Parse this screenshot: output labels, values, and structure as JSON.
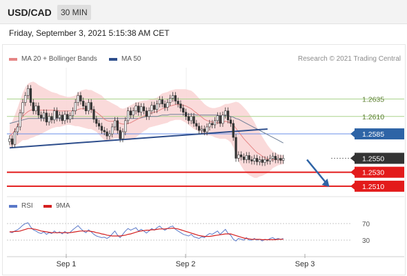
{
  "header": {
    "symbol": "USD/CAD",
    "timeframe": "30 MIN"
  },
  "date_text": "Friday, September 3, 2021 5:15:38 AM CET",
  "legend": {
    "bb_label": "MA 20 + Bollinger Bands",
    "ma50_label": "MA 50",
    "copyright": "Research © 2021 Trading Central"
  },
  "rsi_legend": {
    "rsi_label": "RSI",
    "ma_label": "9MA"
  },
  "colors": {
    "bb_band": "#f9d3d3",
    "ma20": "#e58585",
    "ma50": "#2e4e8c",
    "green_level": "#a9d38b",
    "blue_level": "#6a8fe8",
    "red_level": "#e31b1b",
    "arrow": "#2e64a6",
    "rsi_line": "#5a78c8",
    "rsi_ma": "#d41f1f"
  },
  "chart_data": {
    "type": "line",
    "title": "USD/CAD",
    "x_labels": [
      "Sep 1",
      "Sep 2",
      "Sep 3"
    ],
    "ylim": [
      1.2498,
      1.268
    ],
    "levels": [
      {
        "value": 1.2635,
        "label": "1.2635",
        "kind": "resistance",
        "color": "#a9d38b"
      },
      {
        "value": 1.261,
        "label": "1.2610",
        "kind": "resistance",
        "color": "#a9d38b"
      },
      {
        "value": 1.2585,
        "label": "1.2585",
        "kind": "pivot",
        "color": "#6a8fe8"
      },
      {
        "value": 1.255,
        "label": "1.2550",
        "kind": "last",
        "color": "#333333"
      },
      {
        "value": 1.253,
        "label": "1.2530",
        "kind": "support",
        "color": "#e31b1b"
      },
      {
        "value": 1.251,
        "label": "1.2510",
        "kind": "support",
        "color": "#e31b1b"
      }
    ],
    "trendline": [
      {
        "bar": 0,
        "value": 1.2565
      },
      {
        "bar": 98,
        "value": 1.2592
      }
    ],
    "forecast_arrow": [
      {
        "bar": 113,
        "value": 1.2548
      },
      {
        "bar": 121,
        "value": 1.251
      }
    ],
    "close": [
      1.2578,
      1.257,
      1.2588,
      1.2595,
      1.2615,
      1.263,
      1.264,
      1.265,
      1.263,
      1.2618,
      1.2625,
      1.2612,
      1.2608,
      1.2615,
      1.2602,
      1.261,
      1.2605,
      1.2618,
      1.2608,
      1.2612,
      1.2604,
      1.2613,
      1.2606,
      1.2611,
      1.2618,
      1.263,
      1.264,
      1.2632,
      1.2625,
      1.2618,
      1.263,
      1.262,
      1.2606,
      1.26,
      1.2596,
      1.259,
      1.2588,
      1.2582,
      1.2585,
      1.2595,
      1.2604,
      1.259,
      1.2578,
      1.2588,
      1.2604,
      1.2618,
      1.2612,
      1.2618,
      1.2625,
      1.2616,
      1.2624,
      1.2618,
      1.261,
      1.2618,
      1.2626,
      1.262,
      1.2628,
      1.2634,
      1.2628,
      1.2623,
      1.263,
      1.2636,
      1.264,
      1.2632,
      1.2628,
      1.2622,
      1.2616,
      1.261,
      1.2604,
      1.261,
      1.26,
      1.2596,
      1.259,
      1.2592,
      1.2588,
      1.2595,
      1.26,
      1.2598,
      1.2604,
      1.2611,
      1.26,
      1.2612,
      1.2618,
      1.2605,
      1.26,
      1.258,
      1.255,
      1.2555,
      1.2552,
      1.2548,
      1.2554,
      1.2548,
      1.2546,
      1.255,
      1.2545,
      1.2548,
      1.2544,
      1.2548,
      1.2546,
      1.255,
      1.2553,
      1.2548,
      1.255,
      1.2547,
      1.255
    ],
    "ma20": [
      1.2582,
      1.2585,
      1.259,
      1.2596,
      1.2603,
      1.261,
      1.2614,
      1.2617,
      1.2619,
      1.262,
      1.262,
      1.2619,
      1.2619,
      1.2619,
      1.2619,
      1.2619,
      1.2619,
      1.2619,
      1.2619,
      1.2618,
      1.2618,
      1.2618,
      1.2618,
      1.2618,
      1.2618,
      1.2618,
      1.262,
      1.2621,
      1.2621,
      1.2621,
      1.262,
      1.262,
      1.2618,
      1.2616,
      1.2613,
      1.261,
      1.2606,
      1.2604,
      1.2603,
      1.2603,
      1.2603,
      1.2602,
      1.26,
      1.2599,
      1.2599,
      1.26,
      1.2601,
      1.2603,
      1.2605,
      1.2607,
      1.2609,
      1.2611,
      1.2612,
      1.2614,
      1.2615,
      1.2616,
      1.2617,
      1.2619,
      1.2621,
      1.2622,
      1.2623,
      1.2625,
      1.2626,
      1.2627,
      1.2627,
      1.2627,
      1.2626,
      1.2625,
      1.2623,
      1.2621,
      1.2618,
      1.2615,
      1.2612,
      1.2609,
      1.2606,
      1.2604,
      1.2603,
      1.2602,
      1.2601,
      1.2601,
      1.2601,
      1.2602,
      1.2603,
      1.2602,
      1.2601,
      1.2598,
      1.2593,
      1.2588,
      1.2583,
      1.2578,
      1.2574,
      1.257,
      1.2566,
      1.2562,
      1.2558,
      1.2556,
      1.2553,
      1.2551,
      1.2549,
      1.2548,
      1.2548,
      1.2548,
      1.2548,
      1.2548,
      1.2548
    ],
    "ma50": [
      1.26,
      1.2601,
      1.2602,
      1.2603,
      1.2604,
      1.2605,
      1.2606,
      1.2607,
      1.2607,
      1.2607,
      1.2607,
      1.2607,
      1.2607,
      1.2607,
      1.2607,
      1.2607,
      1.2607,
      1.2607,
      1.2607,
      1.2607,
      1.2607,
      1.2607,
      1.2607,
      1.2607,
      1.2607,
      1.2607,
      1.2607,
      1.2607,
      1.2607,
      1.2607,
      1.2607,
      1.2607,
      1.2607,
      1.2607,
      1.2607,
      1.2607,
      1.2607,
      1.2607,
      1.2607,
      1.2607,
      1.2607,
      1.2607,
      1.2607,
      1.2607,
      1.2607,
      1.2607,
      1.2607,
      1.2607,
      1.2607,
      1.2607,
      1.2608,
      1.2609,
      1.261,
      1.261,
      1.261,
      1.261,
      1.261,
      1.2611,
      1.2612,
      1.2612,
      1.2612,
      1.2613,
      1.2613,
      1.2613,
      1.2613,
      1.2613,
      1.2613,
      1.2613,
      1.2613,
      1.2613,
      1.2613,
      1.2612,
      1.2612,
      1.2612,
      1.2612,
      1.2612,
      1.2612,
      1.2612,
      1.2612,
      1.2612,
      1.2611,
      1.2611,
      1.2611,
      1.2611,
      1.261,
      1.2609,
      1.2607,
      1.2606,
      1.2604,
      1.2602,
      1.26,
      1.2598,
      1.2596,
      1.2594,
      1.2592,
      1.259,
      1.2588,
      1.2586,
      1.2584,
      1.2582,
      1.258,
      1.2578,
      1.2576,
      1.2574,
      1.2572
    ],
    "bb_width": [
      0.0016,
      0.0018,
      0.0022,
      0.0026,
      0.003,
      0.0034,
      0.0038,
      0.004,
      0.004,
      0.004,
      0.0038,
      0.0036,
      0.0034,
      0.0032,
      0.003,
      0.0028,
      0.0026,
      0.0025,
      0.0024,
      0.0023,
      0.0022,
      0.0021,
      0.002,
      0.002,
      0.0021,
      0.0022,
      0.0024,
      0.0026,
      0.0027,
      0.0028,
      0.0028,
      0.0028,
      0.0028,
      0.0028,
      0.0029,
      0.003,
      0.003,
      0.0029,
      0.0028,
      0.0026,
      0.0024,
      0.0023,
      0.0022,
      0.0022,
      0.0023,
      0.0024,
      0.0025,
      0.0025,
      0.0025,
      0.0024,
      0.0023,
      0.0022,
      0.0021,
      0.002,
      0.002,
      0.002,
      0.002,
      0.0021,
      0.0022,
      0.0022,
      0.0022,
      0.0022,
      0.0022,
      0.0022,
      0.0022,
      0.0022,
      0.0023,
      0.0024,
      0.0025,
      0.0026,
      0.0026,
      0.0025,
      0.0024,
      0.0023,
      0.0022,
      0.0021,
      0.002,
      0.002,
      0.0021,
      0.0022,
      0.0023,
      0.0024,
      0.0025,
      0.0026,
      0.0028,
      0.0032,
      0.0038,
      0.0042,
      0.0044,
      0.0045,
      0.0045,
      0.0044,
      0.0042,
      0.004,
      0.0036,
      0.0032,
      0.0028,
      0.0024,
      0.002,
      0.0016,
      0.0012,
      0.001,
      0.0008,
      0.0007,
      0.0006
    ],
    "rsi_ticks": [
      70,
      30
    ],
    "rsi": [
      50,
      48,
      52,
      55,
      60,
      66,
      70,
      72,
      62,
      55,
      52,
      48,
      46,
      50,
      44,
      48,
      46,
      52,
      47,
      50,
      45,
      51,
      46,
      49,
      55,
      60,
      65,
      58,
      52,
      48,
      55,
      50,
      44,
      40,
      38,
      36,
      37,
      34,
      38,
      45,
      52,
      42,
      36,
      44,
      52,
      58,
      54,
      57,
      60,
      52,
      56,
      52,
      47,
      52,
      58,
      54,
      60,
      64,
      58,
      54,
      58,
      62,
      64,
      56,
      52,
      48,
      44,
      42,
      40,
      44,
      38,
      36,
      34,
      38,
      36,
      42,
      46,
      44,
      48,
      52,
      44,
      50,
      56,
      46,
      42,
      32,
      28,
      34,
      32,
      30,
      36,
      30,
      30,
      34,
      30,
      32,
      28,
      32,
      30,
      34,
      36,
      32,
      34,
      32,
      34
    ],
    "rsi_ma": [
      50,
      50,
      51,
      51,
      52,
      54,
      56,
      58,
      58,
      57,
      56,
      54,
      52,
      51,
      50,
      49,
      48,
      48,
      48,
      48,
      48,
      48,
      48,
      48,
      49,
      50,
      51,
      52,
      52,
      52,
      52,
      51,
      50,
      48,
      47,
      45,
      44,
      42,
      41,
      40,
      40,
      40,
      40,
      41,
      42,
      44,
      45,
      47,
      49,
      51,
      52,
      53,
      54,
      54,
      55,
      55,
      56,
      57,
      57,
      57,
      58,
      58,
      59,
      58,
      57,
      55,
      53,
      51,
      49,
      47,
      45,
      43,
      41,
      40,
      39,
      39,
      39,
      40,
      41,
      42,
      43,
      44,
      45,
      45,
      45,
      43,
      41,
      39,
      37,
      35,
      34,
      33,
      32,
      32,
      32,
      32,
      31,
      31,
      31,
      31,
      31,
      31,
      32,
      32,
      32
    ]
  }
}
